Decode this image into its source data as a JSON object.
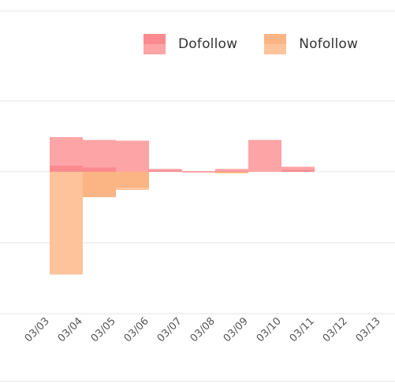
{
  "chart_data": {
    "type": "bar",
    "categories": [
      "03/03",
      "03/04",
      "03/05",
      "03/06",
      "03/07",
      "03/08",
      "03/09",
      "03/10",
      "03/11",
      "03/12",
      "03/13"
    ],
    "series": [
      {
        "name": "Dofollow",
        "color": "#fa8a8f",
        "color_light": "#fda4a7",
        "values": [
          null,
          48,
          44,
          43,
          4,
          0,
          4,
          44,
          7,
          null,
          null
        ],
        "overlap": [
          null,
          9,
          6,
          0,
          2,
          0,
          1,
          0,
          3,
          null,
          null
        ]
      },
      {
        "name": "Nofollow",
        "color": "#fbb483",
        "color_light": "#fec39a",
        "values": [
          null,
          -142,
          -35,
          -25,
          0,
          0,
          -2,
          0,
          0,
          null,
          null
        ],
        "overlap": [
          null,
          0,
          -35,
          -22,
          0,
          0,
          -2,
          0,
          0,
          null,
          null
        ]
      }
    ],
    "ylim": [
      -180,
      200
    ],
    "grid": true,
    "legend_position": "top-right"
  }
}
